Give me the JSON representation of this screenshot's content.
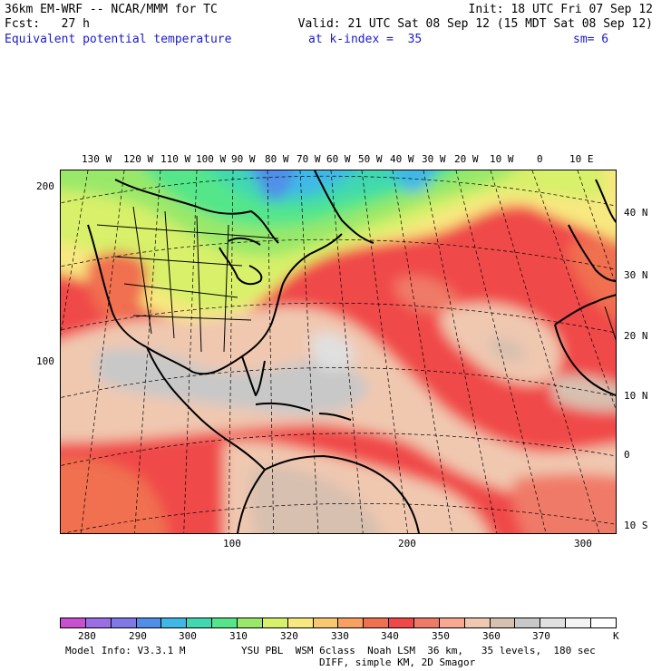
{
  "header": {
    "model": "36km EM-WRF -- NCAR/MMM for TC",
    "init": "Init: 18 UTC Fri 07 Sep 12",
    "fcst": "Fcst:   27 h",
    "valid": "Valid: 21 UTC Sat 08 Sep 12 (15 MDT Sat 08 Sep 12)",
    "field": "Equivalent potential temperature",
    "level": "at k-index =  35",
    "smooth": "sm= 6"
  },
  "map": {
    "top_lon_labels": [
      "130 W",
      "120 W",
      "110 W",
      "100 W",
      "90 W",
      "80 W",
      "70 W",
      "60 W",
      "50 W",
      "40 W",
      "30 W",
      "20 W",
      "10 W",
      "0",
      "10 E"
    ],
    "right_lat_labels": [
      "40 N",
      "30 N",
      "20 N",
      "10 N",
      "0",
      "10 S"
    ],
    "left_grid_labels": [
      "200",
      "100"
    ],
    "bottom_grid_labels": [
      "100",
      "200",
      "300"
    ]
  },
  "colorbar": {
    "colors": [
      "#c84fd0",
      "#9b6ee6",
      "#7f78e6",
      "#4f8fe8",
      "#3fb8e6",
      "#3fd8b0",
      "#55e68a",
      "#9ae86a",
      "#d8f06a",
      "#f8e880",
      "#f8c870",
      "#f8a060",
      "#f07050",
      "#f04848",
      "#f07a68",
      "#f8a890",
      "#f0c8b0",
      "#d8c0b0",
      "#c8c8c8",
      "#e0e0e0",
      "#f4f4f4",
      "#ffffff"
    ],
    "tick_labels": [
      "280",
      "290",
      "300",
      "310",
      "320",
      "330",
      "340",
      "350",
      "360",
      "370"
    ],
    "unit": "K"
  },
  "footer": {
    "line1_left": "Model Info: V3.3.1 M",
    "line1_right": "YSU PBL  WSM 6class  Noah LSM  36 km,   35 levels,  180 sec",
    "line2": "DIFF, simple KM, 2D Smagor"
  }
}
